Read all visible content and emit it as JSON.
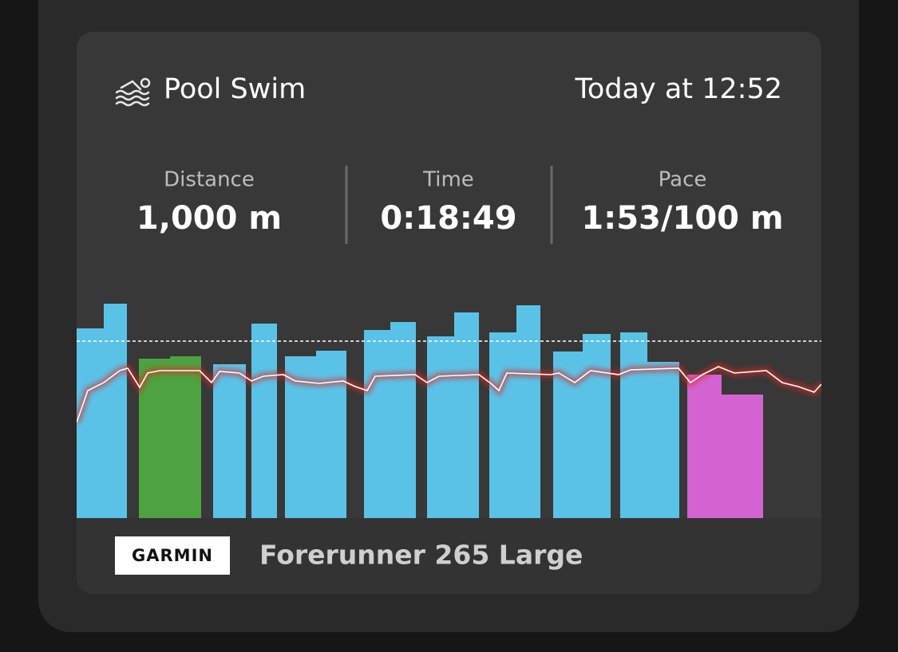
{
  "header": {
    "title": "Pool Swim",
    "time": "Today at 12:52"
  },
  "stats": [
    {
      "label": "Distance",
      "value": "1,000 m"
    },
    {
      "label": "Time",
      "value": "0:18:49"
    },
    {
      "label": "Pace",
      "value": "1:53/100 m"
    }
  ],
  "footer": {
    "brand": "GARMIN",
    "device": "Forerunner 265 Large"
  }
}
